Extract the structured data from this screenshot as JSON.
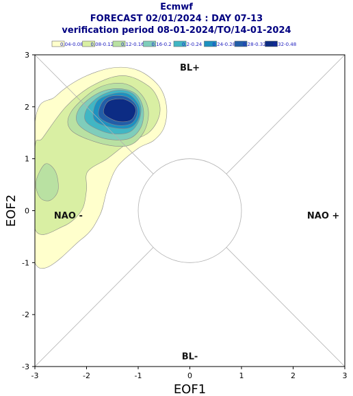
{
  "header": {
    "line1": "Ecmwf",
    "line2": "FORECAST 02/01/2024 : DAY 07-13",
    "line3": "verification period 08-01-2024/TO/14-01-2024"
  },
  "chart_data": {
    "type": "contour",
    "xlabel": "EOF1",
    "ylabel": "EOF2",
    "xlim": [
      -3,
      3
    ],
    "ylim": [
      -3,
      3
    ],
    "xticks": [
      -3,
      -2,
      -1,
      0,
      1,
      2,
      3
    ],
    "yticks": [
      -3,
      -2,
      -1,
      0,
      1,
      2,
      3
    ],
    "tick_labels_x": [
      "-3",
      "-2",
      "-1",
      "0",
      "1",
      "2",
      "3"
    ],
    "tick_labels_y": [
      "-3",
      "-2",
      "-1",
      "0",
      "1",
      "2",
      "3"
    ],
    "regime_labels": {
      "top": "BL+",
      "bottom": "BL-",
      "left": "NAO -",
      "right": "NAO +"
    },
    "neutral_circle_radius": 1,
    "legend": [
      {
        "label": "0.04-0.08",
        "color": "#ffffcc"
      },
      {
        "label": "0.08-0.12",
        "color": "#d9efa3"
      },
      {
        "label": "0.12-0.16",
        "color": "#b9e1a2"
      },
      {
        "label": "0.16-0.2",
        "color": "#7fcdbb"
      },
      {
        "label": "0.2-0.24",
        "color": "#41b6c4"
      },
      {
        "label": "0.24-0.28",
        "color": "#1d91c0"
      },
      {
        "label": "0.28-0.32",
        "color": "#225ea8"
      },
      {
        "label": "0.32-0.48",
        "color": "#0c2c84"
      }
    ],
    "density_peaks": [
      {
        "x": -1.3,
        "y": 1.9,
        "note": "main maximum, 0.32-0.48"
      },
      {
        "x": -2.7,
        "y": 0.5,
        "note": "secondary maximum, 0.08-0.12"
      }
    ],
    "contours": [
      {
        "level": 0,
        "points": [
          [
            -3.0,
            -1.0
          ],
          [
            -2.1,
            -0.55
          ],
          [
            -1.75,
            -0.1
          ],
          [
            -1.6,
            0.4
          ],
          [
            -1.4,
            0.85
          ],
          [
            -1.0,
            1.2
          ],
          [
            -0.7,
            1.35
          ],
          [
            -0.5,
            1.6
          ],
          [
            -0.45,
            2.0
          ],
          [
            -0.6,
            2.4
          ],
          [
            -1.0,
            2.7
          ],
          [
            -1.5,
            2.75
          ],
          [
            -2.1,
            2.55
          ],
          [
            -2.6,
            2.2
          ],
          [
            -3.0,
            1.7
          ]
        ]
      },
      {
        "level": 1,
        "points": [
          [
            -3.0,
            -0.35
          ],
          [
            -2.45,
            -0.3
          ],
          [
            -2.1,
            0.0
          ],
          [
            -2.0,
            0.4
          ],
          [
            -1.98,
            0.75
          ],
          [
            -1.6,
            1.0
          ],
          [
            -1.2,
            1.3
          ],
          [
            -0.8,
            1.5
          ],
          [
            -0.6,
            1.8
          ],
          [
            -0.6,
            2.1
          ],
          [
            -0.8,
            2.4
          ],
          [
            -1.3,
            2.6
          ],
          [
            -1.9,
            2.4
          ],
          [
            -2.4,
            2.0
          ],
          [
            -2.85,
            1.4
          ],
          [
            -3.0,
            1.2
          ]
        ]
      },
      {
        "level": 2,
        "points": [
          [
            -2.3,
            1.55
          ],
          [
            -1.75,
            1.3
          ],
          [
            -1.2,
            1.25
          ],
          [
            -0.9,
            1.5
          ],
          [
            -0.8,
            1.9
          ],
          [
            -0.95,
            2.25
          ],
          [
            -1.3,
            2.45
          ],
          [
            -1.8,
            2.35
          ],
          [
            -2.3,
            1.9
          ]
        ]
      },
      {
        "level": 2,
        "points": [
          [
            -2.98,
            0.55
          ],
          [
            -2.8,
            0.9
          ],
          [
            -2.6,
            0.75
          ],
          [
            -2.55,
            0.4
          ],
          [
            -2.7,
            0.2
          ],
          [
            -2.9,
            0.25
          ]
        ]
      },
      {
        "level": 3,
        "points": [
          [
            -2.15,
            1.65
          ],
          [
            -1.7,
            1.4
          ],
          [
            -1.2,
            1.38
          ],
          [
            -0.95,
            1.6
          ],
          [
            -0.9,
            1.95
          ],
          [
            -1.05,
            2.25
          ],
          [
            -1.4,
            2.35
          ],
          [
            -1.8,
            2.25
          ],
          [
            -2.15,
            1.95
          ]
        ]
      },
      {
        "level": 4,
        "points": [
          [
            -2.0,
            1.7
          ],
          [
            -1.6,
            1.5
          ],
          [
            -1.2,
            1.5
          ],
          [
            -1.0,
            1.7
          ],
          [
            -0.95,
            2.0
          ],
          [
            -1.1,
            2.25
          ],
          [
            -1.4,
            2.32
          ],
          [
            -1.75,
            2.2
          ],
          [
            -2.0,
            1.95
          ]
        ]
      },
      {
        "level": 5,
        "points": [
          [
            -1.85,
            1.75
          ],
          [
            -1.5,
            1.6
          ],
          [
            -1.15,
            1.6
          ],
          [
            -0.98,
            1.8
          ],
          [
            -1.0,
            2.05
          ],
          [
            -1.2,
            2.25
          ],
          [
            -1.5,
            2.25
          ],
          [
            -1.8,
            2.1
          ]
        ]
      },
      {
        "level": 6,
        "points": [
          [
            -1.75,
            1.8
          ],
          [
            -1.45,
            1.65
          ],
          [
            -1.15,
            1.67
          ],
          [
            -1.02,
            1.85
          ],
          [
            -1.05,
            2.05
          ],
          [
            -1.25,
            2.2
          ],
          [
            -1.55,
            2.2
          ],
          [
            -1.72,
            2.05
          ]
        ]
      },
      {
        "level": 7,
        "points": [
          [
            -1.65,
            1.85
          ],
          [
            -1.4,
            1.72
          ],
          [
            -1.15,
            1.74
          ],
          [
            -1.05,
            1.9
          ],
          [
            -1.1,
            2.05
          ],
          [
            -1.3,
            2.15
          ],
          [
            -1.55,
            2.12
          ],
          [
            -1.65,
            2.0
          ]
        ]
      }
    ]
  }
}
